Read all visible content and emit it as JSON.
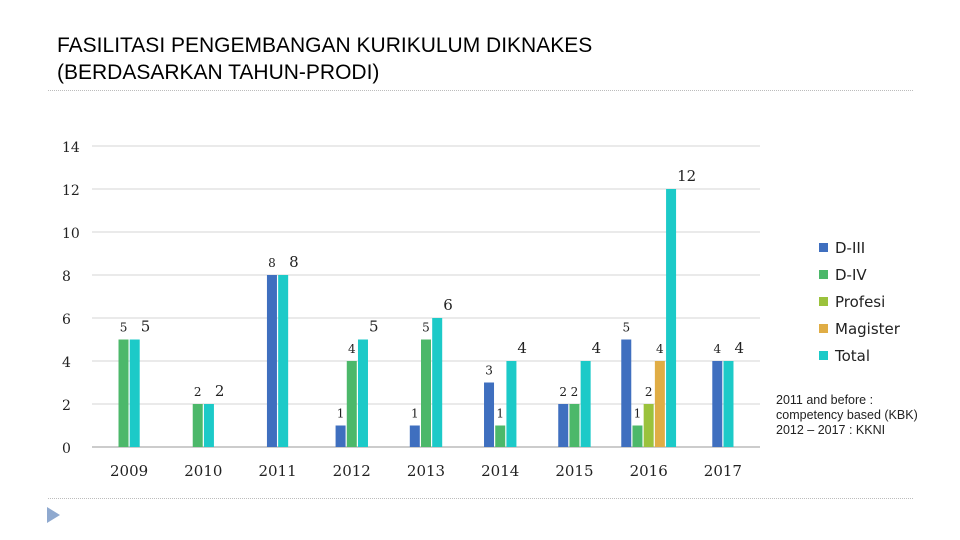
{
  "title": {
    "line1": "FASILITASI PENGEMBANGAN KURIKULUM DIKNAKES",
    "line2": "(BERDASARKAN TAHUN-PRODI)"
  },
  "note": {
    "line1": "2011 and before :",
    "line2": "competency based (KBK)",
    "line3": "2012 – 2017 : KKNI"
  },
  "chart_data": {
    "type": "bar",
    "title": "",
    "xlabel": "",
    "ylabel": "",
    "ylim": [
      0,
      14
    ],
    "yticks": [
      0,
      2,
      4,
      6,
      8,
      10,
      12,
      14
    ],
    "grid": true,
    "legend_position": "right",
    "categories": [
      "2009",
      "2010",
      "2011",
      "2012",
      "2013",
      "2014",
      "2015",
      "2016",
      "2017"
    ],
    "series": [
      {
        "name": "D-III",
        "color": "#3f6fbf",
        "values": [
          null,
          null,
          8,
          1,
          1,
          3,
          2,
          5,
          4
        ]
      },
      {
        "name": "D-IV",
        "color": "#4cb86a",
        "values": [
          5,
          2,
          null,
          4,
          5,
          1,
          2,
          1,
          null
        ]
      },
      {
        "name": "Profesi",
        "color": "#9bc23c",
        "values": [
          null,
          null,
          null,
          null,
          null,
          null,
          null,
          2,
          null
        ]
      },
      {
        "name": "Magister",
        "color": "#e0ad45",
        "values": [
          null,
          null,
          null,
          null,
          null,
          null,
          null,
          4,
          null
        ]
      },
      {
        "name": "Total",
        "color": "#1ccac8",
        "values": [
          5,
          2,
          8,
          5,
          6,
          4,
          4,
          12,
          4
        ]
      }
    ]
  }
}
